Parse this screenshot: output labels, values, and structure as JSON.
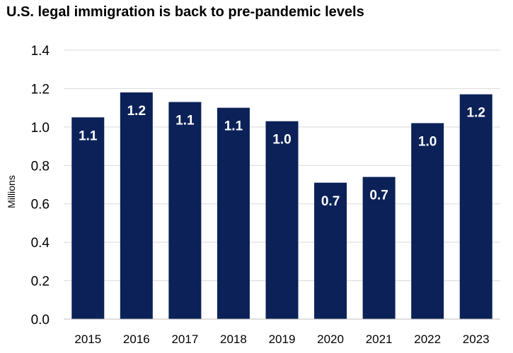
{
  "chart_data": {
    "type": "bar",
    "title": "U.S. legal immigration is back to pre-pandemic levels",
    "xlabel": "",
    "ylabel": "Millions",
    "categories": [
      "2015",
      "2016",
      "2017",
      "2018",
      "2019",
      "2020",
      "2021",
      "2022",
      "2023"
    ],
    "values": [
      1.05,
      1.18,
      1.13,
      1.1,
      1.03,
      0.71,
      0.74,
      1.02,
      1.17
    ],
    "data_labels": [
      "1.1",
      "1.2",
      "1.1",
      "1.1",
      "1.0",
      "0.7",
      "0.7",
      "1.0",
      "1.2"
    ],
    "ylim": [
      0,
      1.4
    ],
    "yticks": [
      0.0,
      0.2,
      0.4,
      0.6,
      0.8,
      1.0,
      1.2,
      1.4
    ],
    "ytick_labels": [
      "0.0",
      "0.2",
      "0.4",
      "0.6",
      "0.8",
      "1.0",
      "1.2",
      "1.4"
    ],
    "grid": true,
    "legend": "none",
    "bar_color": "#0b2158",
    "grid_color": "#d9d9d9",
    "axis_color": "#bfbfbf"
  }
}
